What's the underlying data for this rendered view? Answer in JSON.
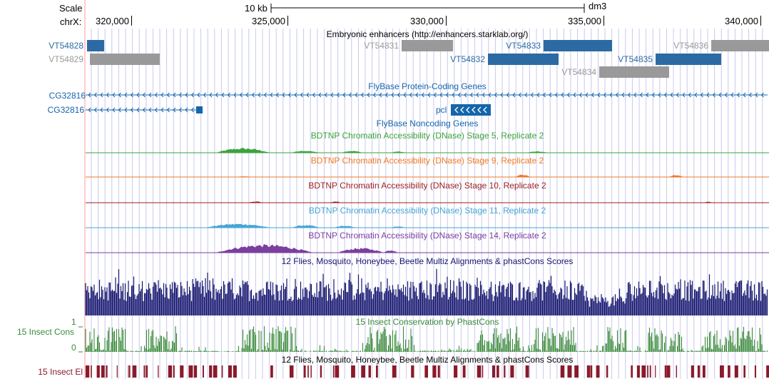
{
  "colors": {
    "enhancer_active": "#2c6aa3",
    "enhancer_inactive": "#999999",
    "gene": "#1565aa",
    "stage5": "#3ba33b",
    "stage9": "#f07a25",
    "stage10": "#9c1f1f",
    "stage11": "#47a6d6",
    "stage14": "#7b3f9e",
    "multiz": "#14146e",
    "phastcons": "#3a8a3a",
    "elements": "#8a1a2a",
    "grid_line": "#c8c8f0",
    "base_line": "#ff9aa0"
  },
  "ruler": {
    "scale_label": "Scale",
    "chrom_label": "chrX:",
    "scale_bar_label": "10 kb",
    "assembly": "dm3",
    "ticks": [
      "320,000",
      "325,000",
      "330,000",
      "335,000",
      "340,000"
    ]
  },
  "enhancers": {
    "title": "Embryonic enhancers (http://enhancers.starklab.org/)",
    "items": [
      {
        "name": "VT54828",
        "active": true
      },
      {
        "name": "VT54829",
        "active": false
      },
      {
        "name": "VT54831",
        "active": false
      },
      {
        "name": "VT54833",
        "active": true
      },
      {
        "name": "VT54832",
        "active": true
      },
      {
        "name": "VT54836",
        "active": false
      },
      {
        "name": "VT54835",
        "active": true
      },
      {
        "name": "VT54834",
        "active": false
      }
    ]
  },
  "genes": {
    "title": "FlyBase Protein-Coding Genes",
    "gene1": "CG32816",
    "gene2": "CG32816"
  },
  "noncoding": {
    "title": "FlyBase Noncoding Genes",
    "gene": "pcl"
  },
  "dnase_tracks": [
    {
      "title": "BDTNP Chromatin Accessibility (DNase) Stage 5, Replicate 2",
      "color_key": "stage5"
    },
    {
      "title": "BDTNP Chromatin Accessibility (DNase) Stage 9, Replicate 2",
      "color_key": "stage9"
    },
    {
      "title": "BDTNP Chromatin Accessibility (DNase) Stage 10, Replicate 2",
      "color_key": "stage10"
    },
    {
      "title": "BDTNP Chromatin Accessibility (DNase) Stage 11, Replicate 2",
      "color_key": "stage11"
    },
    {
      "title": "BDTNP Chromatin Accessibility (DNase) Stage 14, Replicate 2",
      "color_key": "stage14"
    }
  ],
  "multiz": {
    "title": "12 Flies, Mosquito, Honeybee, Beetle Multiz Alignments & phastCons Scores"
  },
  "phastcons": {
    "title": "15 Insect Conservation by PhastCons",
    "left_label": "15 Insect Cons",
    "ymax": "1",
    "ymin": "0"
  },
  "elements": {
    "title": "12 Flies, Mosquito, Honeybee, Beetle Multiz Alignments & phastCons Scores",
    "left_label": "15 Insect El"
  }
}
